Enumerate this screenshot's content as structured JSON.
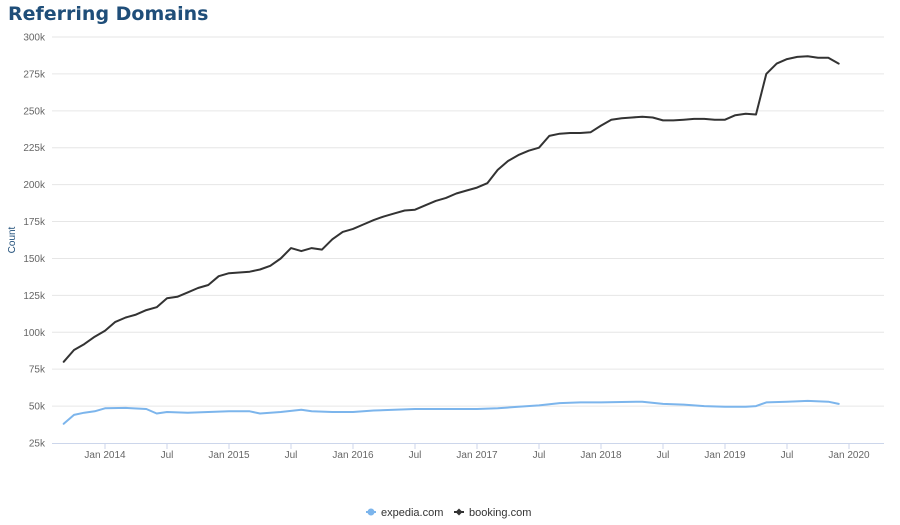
{
  "chart_data": {
    "type": "line",
    "title": "Referring Domains",
    "ylabel": "Count",
    "xlabel": "",
    "x_start": "2013-09",
    "x_end": "2019-12",
    "x_ticks": [
      {
        "date": "2014-01",
        "label": "Jan 2014"
      },
      {
        "date": "2014-07",
        "label": "Jul"
      },
      {
        "date": "2015-01",
        "label": "Jan 2015"
      },
      {
        "date": "2015-07",
        "label": "Jul"
      },
      {
        "date": "2016-01",
        "label": "Jan 2016"
      },
      {
        "date": "2016-07",
        "label": "Jul"
      },
      {
        "date": "2017-01",
        "label": "Jan 2017"
      },
      {
        "date": "2017-07",
        "label": "Jul"
      },
      {
        "date": "2018-01",
        "label": "Jan 2018"
      },
      {
        "date": "2018-07",
        "label": "Jul"
      },
      {
        "date": "2019-01",
        "label": "Jan 2019"
      },
      {
        "date": "2019-07",
        "label": "Jul"
      },
      {
        "date": "2020-01",
        "label": "Jan 2020"
      }
    ],
    "y_ticks": [
      {
        "value": 25000,
        "label": "25k"
      },
      {
        "value": 50000,
        "label": "50k"
      },
      {
        "value": 75000,
        "label": "75k"
      },
      {
        "value": 100000,
        "label": "100k"
      },
      {
        "value": 125000,
        "label": "125k"
      },
      {
        "value": 150000,
        "label": "150k"
      },
      {
        "value": 175000,
        "label": "175k"
      },
      {
        "value": 200000,
        "label": "200k"
      },
      {
        "value": 225000,
        "label": "225k"
      },
      {
        "value": 250000,
        "label": "250k"
      },
      {
        "value": 275000,
        "label": "275k"
      },
      {
        "value": 300000,
        "label": "300k"
      }
    ],
    "ylim": [
      25000,
      300000
    ],
    "grid": true,
    "legend_position": "bottom-center",
    "series": [
      {
        "name": "expedia.com",
        "color": "#7cb5ec",
        "points": [
          [
            "2013-09",
            38000
          ],
          [
            "2013-10",
            44000
          ],
          [
            "2013-11",
            45500
          ],
          [
            "2013-12",
            46500
          ],
          [
            "2014-01",
            48500
          ],
          [
            "2014-03",
            48800
          ],
          [
            "2014-05",
            48000
          ],
          [
            "2014-06",
            45000
          ],
          [
            "2014-07",
            46000
          ],
          [
            "2014-09",
            45500
          ],
          [
            "2014-11",
            46000
          ],
          [
            "2015-01",
            46500
          ],
          [
            "2015-03",
            46500
          ],
          [
            "2015-04",
            45000
          ],
          [
            "2015-06",
            46000
          ],
          [
            "2015-08",
            47500
          ],
          [
            "2015-09",
            46500
          ],
          [
            "2015-11",
            46000
          ],
          [
            "2016-01",
            46000
          ],
          [
            "2016-03",
            47000
          ],
          [
            "2016-05",
            47500
          ],
          [
            "2016-07",
            48000
          ],
          [
            "2016-09",
            48000
          ],
          [
            "2016-11",
            48000
          ],
          [
            "2017-01",
            48000
          ],
          [
            "2017-03",
            48500
          ],
          [
            "2017-05",
            49500
          ],
          [
            "2017-07",
            50500
          ],
          [
            "2017-09",
            52000
          ],
          [
            "2017-11",
            52500
          ],
          [
            "2018-01",
            52500
          ],
          [
            "2018-03",
            52800
          ],
          [
            "2018-05",
            53000
          ],
          [
            "2018-07",
            51500
          ],
          [
            "2018-09",
            51000
          ],
          [
            "2018-11",
            50000
          ],
          [
            "2019-01",
            49500
          ],
          [
            "2019-03",
            49500
          ],
          [
            "2019-04",
            50000
          ],
          [
            "2019-05",
            52500
          ],
          [
            "2019-07",
            53000
          ],
          [
            "2019-09",
            53500
          ],
          [
            "2019-11",
            53000
          ],
          [
            "2019-12",
            51500
          ]
        ]
      },
      {
        "name": "booking.com",
        "color": "#333333",
        "points": [
          [
            "2013-09",
            80000
          ],
          [
            "2013-10",
            88000
          ],
          [
            "2013-11",
            92000
          ],
          [
            "2013-12",
            97000
          ],
          [
            "2014-01",
            101000
          ],
          [
            "2014-02",
            107000
          ],
          [
            "2014-03",
            110000
          ],
          [
            "2014-04",
            112000
          ],
          [
            "2014-05",
            115000
          ],
          [
            "2014-06",
            117000
          ],
          [
            "2014-07",
            123000
          ],
          [
            "2014-08",
            124000
          ],
          [
            "2014-09",
            127000
          ],
          [
            "2014-10",
            130000
          ],
          [
            "2014-11",
            132000
          ],
          [
            "2014-12",
            138000
          ],
          [
            "2015-01",
            140000
          ],
          [
            "2015-02",
            140500
          ],
          [
            "2015-03",
            141000
          ],
          [
            "2015-04",
            142500
          ],
          [
            "2015-05",
            145000
          ],
          [
            "2015-06",
            150000
          ],
          [
            "2015-07",
            157000
          ],
          [
            "2015-08",
            155000
          ],
          [
            "2015-09",
            157000
          ],
          [
            "2015-10",
            156000
          ],
          [
            "2015-11",
            163000
          ],
          [
            "2015-12",
            168000
          ],
          [
            "2016-01",
            170000
          ],
          [
            "2016-02",
            173000
          ],
          [
            "2016-03",
            176000
          ],
          [
            "2016-04",
            178500
          ],
          [
            "2016-05",
            180500
          ],
          [
            "2016-06",
            182500
          ],
          [
            "2016-07",
            183000
          ],
          [
            "2016-08",
            186000
          ],
          [
            "2016-09",
            189000
          ],
          [
            "2016-10",
            191000
          ],
          [
            "2016-11",
            194000
          ],
          [
            "2016-12",
            196000
          ],
          [
            "2017-01",
            198000
          ],
          [
            "2017-02",
            201000
          ],
          [
            "2017-03",
            210000
          ],
          [
            "2017-04",
            216000
          ],
          [
            "2017-05",
            220000
          ],
          [
            "2017-06",
            223000
          ],
          [
            "2017-07",
            225000
          ],
          [
            "2017-08",
            233000
          ],
          [
            "2017-09",
            234500
          ],
          [
            "2017-10",
            235000
          ],
          [
            "2017-11",
            235000
          ],
          [
            "2017-12",
            235500
          ],
          [
            "2018-01",
            240000
          ],
          [
            "2018-02",
            244000
          ],
          [
            "2018-03",
            245000
          ],
          [
            "2018-04",
            245500
          ],
          [
            "2018-05",
            246000
          ],
          [
            "2018-06",
            245500
          ],
          [
            "2018-07",
            243500
          ],
          [
            "2018-08",
            243500
          ],
          [
            "2018-09",
            244000
          ],
          [
            "2018-10",
            244500
          ],
          [
            "2018-11",
            244500
          ],
          [
            "2018-12",
            244000
          ],
          [
            "2019-01",
            244000
          ],
          [
            "2019-02",
            247000
          ],
          [
            "2019-03",
            248000
          ],
          [
            "2019-04",
            247500
          ],
          [
            "2019-05",
            275000
          ],
          [
            "2019-06",
            282000
          ],
          [
            "2019-07",
            285000
          ],
          [
            "2019-08",
            286500
          ],
          [
            "2019-09",
            287000
          ],
          [
            "2019-10",
            286000
          ],
          [
            "2019-11",
            286000
          ],
          [
            "2019-12",
            282000
          ]
        ]
      }
    ]
  }
}
